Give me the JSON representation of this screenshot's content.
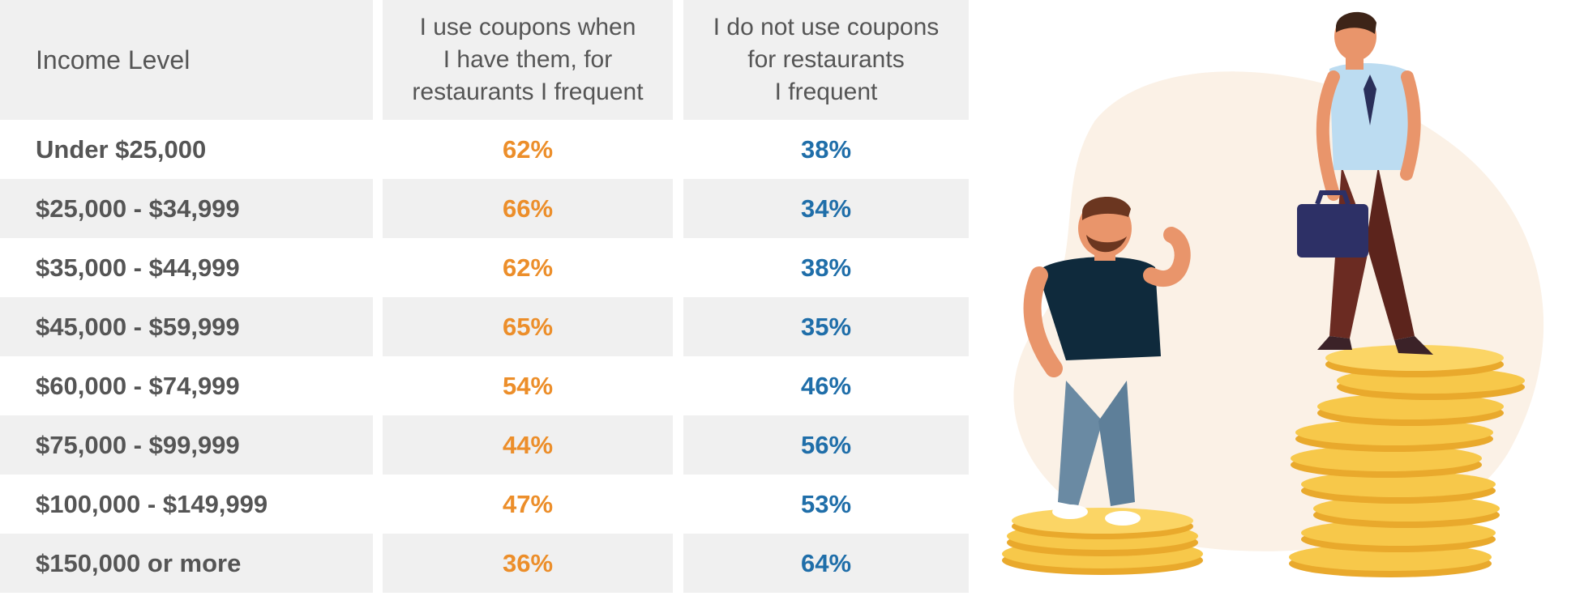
{
  "chart_data": {
    "type": "table",
    "columns": [
      "Income Level",
      "I use coupons when\nI have them, for\nrestaurants I frequent",
      "I do not use coupons\nfor restaurants\nI frequent"
    ],
    "rows": [
      {
        "income": "Under $25,000",
        "use": "62%",
        "not_use": "38%"
      },
      {
        "income": "$25,000 - $34,999",
        "use": "66%",
        "not_use": "34%"
      },
      {
        "income": "$35,000 - $44,999",
        "use": "62%",
        "not_use": "38%"
      },
      {
        "income": "$45,000 - $59,999",
        "use": "65%",
        "not_use": "35%"
      },
      {
        "income": "$60,000 - $74,999",
        "use": "54%",
        "not_use": "46%"
      },
      {
        "income": "$75,000 - $99,999",
        "use": "44%",
        "not_use": "56%"
      },
      {
        "income": "$100,000 - $149,999",
        "use": "47%",
        "not_use": "53%"
      },
      {
        "income": "$150,000 or more",
        "use": "36%",
        "not_use": "64%"
      }
    ],
    "colors": {
      "use": "#ec8e2a",
      "not_use": "#1f6ea9",
      "text": "#555555",
      "shade": "#f0f0f0"
    }
  },
  "illustration": {
    "icons": [
      "thinking-man-on-small-coin-stack-icon",
      "businessman-on-tall-coin-stack-icon"
    ]
  }
}
